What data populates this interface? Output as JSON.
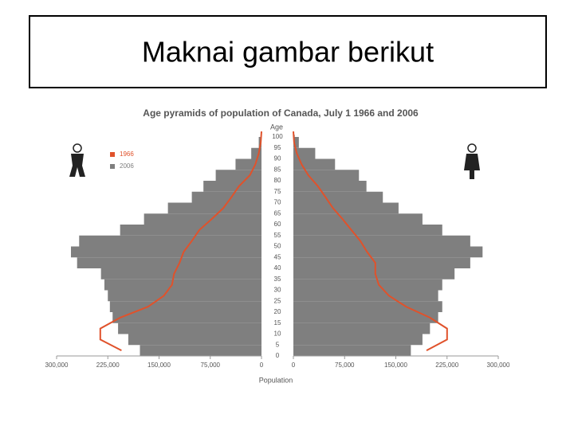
{
  "slide_title": "Maknai gambar berikut",
  "chart_data": {
    "type": "pyramid",
    "title": "Age pyramids of population of Canada, July 1 1966 and 2006",
    "y_label": "Age",
    "x_label": "Population",
    "y": [
      0,
      5,
      10,
      15,
      20,
      25,
      30,
      35,
      40,
      45,
      50,
      55,
      60,
      65,
      70,
      75,
      80,
      85,
      90,
      95,
      100
    ],
    "series": [
      {
        "name": "1966",
        "color": "#e0522b",
        "style": "line",
        "left": [
          205000,
          236000,
          236000,
          207000,
          166000,
          143000,
          131000,
          128000,
          120000,
          114000,
          102000,
          91000,
          73000,
          56000,
          44000,
          33000,
          17000,
          9000,
          4000,
          1000,
          0
        ],
        "right": [
          195000,
          225000,
          225000,
          200000,
          165000,
          140000,
          125000,
          120000,
          120000,
          108000,
          98000,
          85000,
          72000,
          58000,
          47000,
          36000,
          22000,
          12000,
          5000,
          1000,
          0
        ]
      },
      {
        "name": "2006",
        "color": "#7f7f7f",
        "style": "bar",
        "left": [
          178000,
          195000,
          210000,
          218000,
          222000,
          225000,
          230000,
          235000,
          270000,
          279000,
          267000,
          207000,
          172000,
          137000,
          102000,
          85000,
          67000,
          38000,
          15000,
          4000,
          1000
        ],
        "right": [
          172000,
          189000,
          200000,
          212000,
          218000,
          212000,
          218000,
          236000,
          259000,
          277000,
          259000,
          218000,
          189000,
          154000,
          131000,
          107000,
          96000,
          61000,
          32000,
          8000,
          2000
        ]
      }
    ],
    "xlim": [
      0,
      300000
    ],
    "xticks": [
      {
        "value": 300000,
        "label": "300,000"
      },
      {
        "value": 225000,
        "label": "225,000"
      },
      {
        "value": 150000,
        "label": "150,000"
      },
      {
        "value": 75000,
        "label": "75,000"
      },
      0
    ],
    "ylim": [
      0,
      100
    ],
    "yticks": [
      0,
      5,
      10,
      15,
      20,
      25,
      30,
      35,
      40,
      45,
      50,
      55,
      60,
      65,
      70,
      75,
      80,
      85,
      90,
      95,
      100
    ]
  }
}
